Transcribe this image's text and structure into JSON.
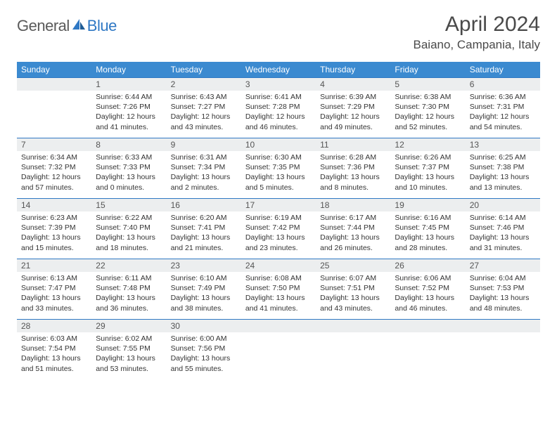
{
  "brand": {
    "general": "General",
    "blue": "Blue"
  },
  "title": "April 2024",
  "location": "Baiano, Campania, Italy",
  "header_bg": "#3b8ad0",
  "dayname_bg": "#eceeef",
  "rule_color": "#2f78c4",
  "weekdays": [
    "Sunday",
    "Monday",
    "Tuesday",
    "Wednesday",
    "Thursday",
    "Friday",
    "Saturday"
  ],
  "weeks": [
    [
      null,
      {
        "n": "1",
        "sr": "6:44 AM",
        "ss": "7:26 PM",
        "dl": "12 hours and 41 minutes."
      },
      {
        "n": "2",
        "sr": "6:43 AM",
        "ss": "7:27 PM",
        "dl": "12 hours and 43 minutes."
      },
      {
        "n": "3",
        "sr": "6:41 AM",
        "ss": "7:28 PM",
        "dl": "12 hours and 46 minutes."
      },
      {
        "n": "4",
        "sr": "6:39 AM",
        "ss": "7:29 PM",
        "dl": "12 hours and 49 minutes."
      },
      {
        "n": "5",
        "sr": "6:38 AM",
        "ss": "7:30 PM",
        "dl": "12 hours and 52 minutes."
      },
      {
        "n": "6",
        "sr": "6:36 AM",
        "ss": "7:31 PM",
        "dl": "12 hours and 54 minutes."
      }
    ],
    [
      {
        "n": "7",
        "sr": "6:34 AM",
        "ss": "7:32 PM",
        "dl": "12 hours and 57 minutes."
      },
      {
        "n": "8",
        "sr": "6:33 AM",
        "ss": "7:33 PM",
        "dl": "13 hours and 0 minutes."
      },
      {
        "n": "9",
        "sr": "6:31 AM",
        "ss": "7:34 PM",
        "dl": "13 hours and 2 minutes."
      },
      {
        "n": "10",
        "sr": "6:30 AM",
        "ss": "7:35 PM",
        "dl": "13 hours and 5 minutes."
      },
      {
        "n": "11",
        "sr": "6:28 AM",
        "ss": "7:36 PM",
        "dl": "13 hours and 8 minutes."
      },
      {
        "n": "12",
        "sr": "6:26 AM",
        "ss": "7:37 PM",
        "dl": "13 hours and 10 minutes."
      },
      {
        "n": "13",
        "sr": "6:25 AM",
        "ss": "7:38 PM",
        "dl": "13 hours and 13 minutes."
      }
    ],
    [
      {
        "n": "14",
        "sr": "6:23 AM",
        "ss": "7:39 PM",
        "dl": "13 hours and 15 minutes."
      },
      {
        "n": "15",
        "sr": "6:22 AM",
        "ss": "7:40 PM",
        "dl": "13 hours and 18 minutes."
      },
      {
        "n": "16",
        "sr": "6:20 AM",
        "ss": "7:41 PM",
        "dl": "13 hours and 21 minutes."
      },
      {
        "n": "17",
        "sr": "6:19 AM",
        "ss": "7:42 PM",
        "dl": "13 hours and 23 minutes."
      },
      {
        "n": "18",
        "sr": "6:17 AM",
        "ss": "7:44 PM",
        "dl": "13 hours and 26 minutes."
      },
      {
        "n": "19",
        "sr": "6:16 AM",
        "ss": "7:45 PM",
        "dl": "13 hours and 28 minutes."
      },
      {
        "n": "20",
        "sr": "6:14 AM",
        "ss": "7:46 PM",
        "dl": "13 hours and 31 minutes."
      }
    ],
    [
      {
        "n": "21",
        "sr": "6:13 AM",
        "ss": "7:47 PM",
        "dl": "13 hours and 33 minutes."
      },
      {
        "n": "22",
        "sr": "6:11 AM",
        "ss": "7:48 PM",
        "dl": "13 hours and 36 minutes."
      },
      {
        "n": "23",
        "sr": "6:10 AM",
        "ss": "7:49 PM",
        "dl": "13 hours and 38 minutes."
      },
      {
        "n": "24",
        "sr": "6:08 AM",
        "ss": "7:50 PM",
        "dl": "13 hours and 41 minutes."
      },
      {
        "n": "25",
        "sr": "6:07 AM",
        "ss": "7:51 PM",
        "dl": "13 hours and 43 minutes."
      },
      {
        "n": "26",
        "sr": "6:06 AM",
        "ss": "7:52 PM",
        "dl": "13 hours and 46 minutes."
      },
      {
        "n": "27",
        "sr": "6:04 AM",
        "ss": "7:53 PM",
        "dl": "13 hours and 48 minutes."
      }
    ],
    [
      {
        "n": "28",
        "sr": "6:03 AM",
        "ss": "7:54 PM",
        "dl": "13 hours and 51 minutes."
      },
      {
        "n": "29",
        "sr": "6:02 AM",
        "ss": "7:55 PM",
        "dl": "13 hours and 53 minutes."
      },
      {
        "n": "30",
        "sr": "6:00 AM",
        "ss": "7:56 PM",
        "dl": "13 hours and 55 minutes."
      },
      null,
      null,
      null,
      null
    ]
  ]
}
